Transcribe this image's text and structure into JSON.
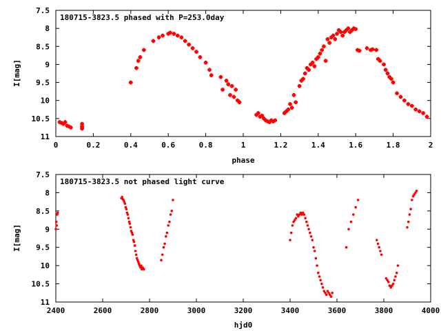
{
  "chart_data": [
    {
      "type": "scatter",
      "title": "180715-3823.5 phased with P=253.0day",
      "xlabel": "phase",
      "ylabel": "I[mag]",
      "xlim": [
        0,
        2
      ],
      "ylim": [
        11,
        7.5
      ],
      "xticks": [
        "0",
        "0.2",
        "0.4",
        "0.6",
        "0.8",
        "1",
        "1.2",
        "1.4",
        "1.6",
        "1.8",
        "2"
      ],
      "xtick_values": [
        0,
        0.2,
        0.4,
        0.6,
        0.8,
        1.0,
        1.2,
        1.4,
        1.6,
        1.8,
        2.0
      ],
      "yticks": [
        "7.5",
        "8",
        "8.5",
        "9",
        "9.5",
        "10",
        "10.5",
        "11"
      ],
      "ytick_values": [
        7.5,
        8,
        8.5,
        9,
        9.5,
        10,
        10.5,
        11
      ],
      "marker_color": "#ff0000",
      "series": [
        {
          "x": [
            0.02,
            0.03,
            0.04,
            0.05,
            0.06,
            0.07,
            0.08,
            0.14,
            0.14,
            0.14,
            0.4,
            0.43,
            0.44,
            0.45,
            0.47,
            0.52,
            0.55,
            0.57,
            0.6,
            0.61,
            0.63,
            0.65,
            0.67,
            0.69,
            0.71,
            0.73,
            0.75,
            0.77,
            0.8,
            0.82,
            0.83,
            0.88,
            0.89,
            0.91,
            0.92,
            0.93,
            0.94,
            0.95,
            0.96,
            0.97,
            0.98,
            1.07,
            1.08,
            1.09,
            1.1,
            1.11,
            1.12,
            1.13,
            1.14,
            1.15,
            1.16,
            1.17,
            1.22,
            1.23,
            1.24,
            1.25,
            1.26,
            1.27,
            1.28,
            1.3,
            1.31,
            1.32,
            1.33,
            1.34,
            1.35,
            1.36,
            1.37,
            1.38,
            1.39,
            1.4,
            1.41,
            1.42,
            1.43,
            1.44,
            1.45,
            1.46,
            1.47,
            1.48,
            1.49,
            1.5,
            1.51,
            1.52,
            1.53,
            1.54,
            1.55,
            1.56,
            1.57,
            1.58,
            1.59,
            1.6,
            1.61,
            1.62,
            1.66,
            1.68,
            1.69,
            1.71,
            1.72,
            1.73,
            1.75,
            1.76,
            1.77,
            1.78,
            1.79,
            1.8,
            1.82,
            1.84,
            1.86,
            1.88,
            1.9,
            1.92,
            1.94,
            1.96,
            1.98
          ],
          "y": [
            10.6,
            10.62,
            10.65,
            10.6,
            10.7,
            10.72,
            10.75,
            10.65,
            10.72,
            10.78,
            9.5,
            9.1,
            8.9,
            8.8,
            8.6,
            8.35,
            8.25,
            8.2,
            8.15,
            8.12,
            8.15,
            8.2,
            8.25,
            8.35,
            8.45,
            8.55,
            8.65,
            8.8,
            8.95,
            9.15,
            9.3,
            9.35,
            9.7,
            9.45,
            9.55,
            9.85,
            9.6,
            9.9,
            9.7,
            10.0,
            10.05,
            10.4,
            10.35,
            10.45,
            10.42,
            10.5,
            10.55,
            10.58,
            10.6,
            10.55,
            10.58,
            10.55,
            10.35,
            10.3,
            10.25,
            10.1,
            10.2,
            9.85,
            10.05,
            9.6,
            9.45,
            9.4,
            9.25,
            9.1,
            9.15,
            9.0,
            8.95,
            9.05,
            8.85,
            8.8,
            8.7,
            8.6,
            8.5,
            8.9,
            8.3,
            8.4,
            8.25,
            8.2,
            8.3,
            8.15,
            8.05,
            8.1,
            8.2,
            8.1,
            8.05,
            8.0,
            8.1,
            8.05,
            8.0,
            8.02,
            8.6,
            8.62,
            8.55,
            8.6,
            8.58,
            8.6,
            8.85,
            8.9,
            9.0,
            9.15,
            9.25,
            9.35,
            9.4,
            9.5,
            9.8,
            9.9,
            10.0,
            10.1,
            10.15,
            10.25,
            10.3,
            10.35,
            10.45
          ]
        }
      ]
    },
    {
      "type": "scatter",
      "title": "180715-3823.5 not phased light curve",
      "xlabel": "hjd0",
      "ylabel": "I[mag]",
      "xlim": [
        2400,
        4000
      ],
      "ylim": [
        11,
        7.5
      ],
      "xticks": [
        "2400",
        "2600",
        "2800",
        "3000",
        "3200",
        "3400",
        "3600",
        "3800",
        "4000"
      ],
      "xtick_values": [
        2400,
        2600,
        2800,
        3000,
        3200,
        3400,
        3600,
        3800,
        4000
      ],
      "yticks": [
        "7.5",
        "8",
        "8.5",
        "9",
        "9.5",
        "10",
        "10.5",
        "11"
      ],
      "ytick_values": [
        7.5,
        8,
        8.5,
        9,
        9.5,
        10,
        10.5,
        11
      ],
      "marker_color": "#ff0000",
      "series": [
        {
          "x": [
            2400,
            2402,
            2404,
            2406,
            2408,
            2680,
            2683,
            2686,
            2689,
            2692,
            2695,
            2698,
            2701,
            2704,
            2707,
            2710,
            2713,
            2716,
            2719,
            2722,
            2725,
            2728,
            2731,
            2734,
            2737,
            2740,
            2743,
            2746,
            2749,
            2752,
            2755,
            2758,
            2761,
            2764,
            2767,
            2770,
            2773,
            2776,
            2850,
            2855,
            2860,
            2865,
            2870,
            2875,
            2880,
            2885,
            2890,
            2895,
            2900,
            3400,
            3405,
            3410,
            3415,
            3420,
            3425,
            3430,
            3435,
            3440,
            3445,
            3450,
            3455,
            3460,
            3465,
            3470,
            3475,
            3480,
            3485,
            3490,
            3495,
            3500,
            3505,
            3510,
            3515,
            3520,
            3525,
            3530,
            3535,
            3540,
            3545,
            3550,
            3555,
            3560,
            3565,
            3570,
            3575,
            3580,
            3640,
            3650,
            3660,
            3670,
            3680,
            3690,
            3770,
            3775,
            3780,
            3785,
            3790,
            3810,
            3815,
            3820,
            3825,
            3830,
            3835,
            3840,
            3845,
            3850,
            3855,
            3860,
            3900,
            3905,
            3910,
            3915,
            3920,
            3925,
            3930,
            3935,
            3940
          ],
          "y": [
            9.0,
            8.8,
            8.9,
            8.6,
            8.55,
            8.15,
            8.12,
            8.18,
            8.2,
            8.25,
            8.3,
            8.4,
            8.45,
            8.55,
            8.6,
            8.7,
            8.8,
            8.85,
            8.95,
            9.05,
            9.1,
            9.15,
            9.3,
            9.35,
            9.45,
            9.6,
            9.7,
            9.8,
            9.85,
            9.9,
            9.95,
            10.0,
            10.05,
            10.0,
            10.1,
            10.05,
            10.08,
            10.1,
            9.85,
            9.7,
            9.5,
            9.4,
            9.2,
            9.1,
            8.9,
            8.8,
            8.6,
            8.5,
            8.2,
            9.3,
            9.1,
            8.9,
            8.8,
            8.75,
            8.7,
            8.6,
            8.65,
            8.6,
            8.55,
            8.6,
            8.55,
            8.6,
            8.7,
            8.8,
            8.9,
            9.0,
            9.1,
            9.2,
            9.3,
            9.5,
            9.6,
            9.8,
            10.0,
            10.2,
            10.3,
            10.4,
            10.5,
            10.6,
            10.7,
            10.75,
            10.8,
            10.7,
            10.75,
            10.8,
            10.85,
            10.75,
            9.5,
            9.0,
            8.8,
            8.6,
            8.4,
            8.2,
            9.3,
            9.4,
            9.5,
            9.6,
            9.7,
            10.35,
            10.4,
            10.45,
            10.55,
            10.6,
            10.55,
            10.5,
            10.4,
            10.3,
            10.2,
            10.0,
            8.95,
            8.8,
            8.6,
            8.45,
            8.2,
            8.1,
            8.05,
            8.0,
            7.95
          ]
        }
      ]
    }
  ]
}
